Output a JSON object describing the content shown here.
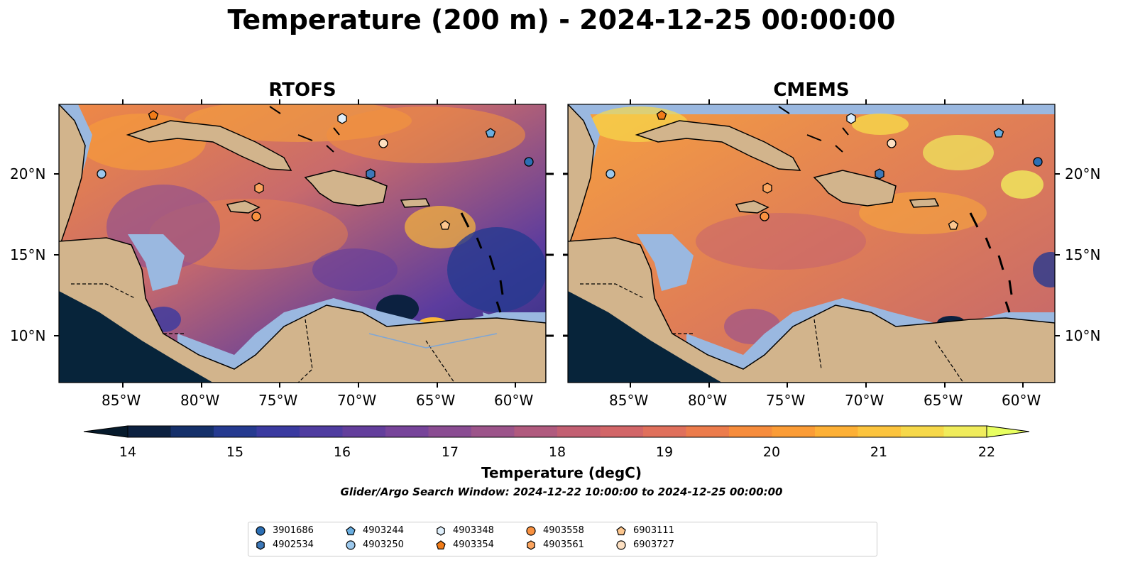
{
  "title": "Temperature (200 m) - 2024-12-25 00:00:00",
  "panels": [
    {
      "title": "RTOFS"
    },
    {
      "title": "CMEMS"
    }
  ],
  "axes": {
    "lon_ticks": [
      "85°W",
      "80°W",
      "75°W",
      "70°W",
      "65°W",
      "60°W"
    ],
    "lat_ticks": [
      "20°N",
      "15°N",
      "10°N"
    ]
  },
  "colorbar": {
    "label": "Temperature (degC)",
    "ticks": [
      "14",
      "15",
      "16",
      "17",
      "18",
      "19",
      "20",
      "21",
      "22"
    ],
    "colors": [
      "#0c2140",
      "#15306a",
      "#253a90",
      "#3a3aa0",
      "#4f3ca0",
      "#633e9c",
      "#77449a",
      "#8a4c92",
      "#9c548a",
      "#b05a7e",
      "#c25f72",
      "#d26668",
      "#e0705c",
      "#ec7c4c",
      "#f68c3c",
      "#fb9c36",
      "#fdb036",
      "#fcc43e",
      "#f6d84a",
      "#f0ec5c"
    ],
    "under_color": "#061a2c",
    "over_color": "#e8ff60"
  },
  "search_window": "Glider/Argo Search Window: 2024-12-22 10:00:00 to 2024-12-25 00:00:00",
  "legend": [
    {
      "id": "3901686",
      "marker": "circle",
      "color": "#2c6fb4"
    },
    {
      "id": "4902534",
      "marker": "hexagon",
      "color": "#3d78b8"
    },
    {
      "id": "4903244",
      "marker": "pentagon",
      "color": "#6aaee0"
    },
    {
      "id": "4903250",
      "marker": "circle",
      "color": "#9cc8ec"
    },
    {
      "id": "4903348",
      "marker": "hexagon",
      "color": "#dfeffb"
    },
    {
      "id": "4903354",
      "marker": "pentagon",
      "color": "#f07b18"
    },
    {
      "id": "4903558",
      "marker": "circle",
      "color": "#f99140"
    },
    {
      "id": "4903561",
      "marker": "hexagon",
      "color": "#fba45e"
    },
    {
      "id": "6903111",
      "marker": "pentagon",
      "color": "#fcc68e"
    },
    {
      "id": "6903727",
      "marker": "circle",
      "color": "#fde0c2"
    }
  ],
  "map_colors": {
    "land": "#d2b48c",
    "shelf": "#9ab8e0",
    "deep": "#07243a",
    "coast": "#000000"
  }
}
